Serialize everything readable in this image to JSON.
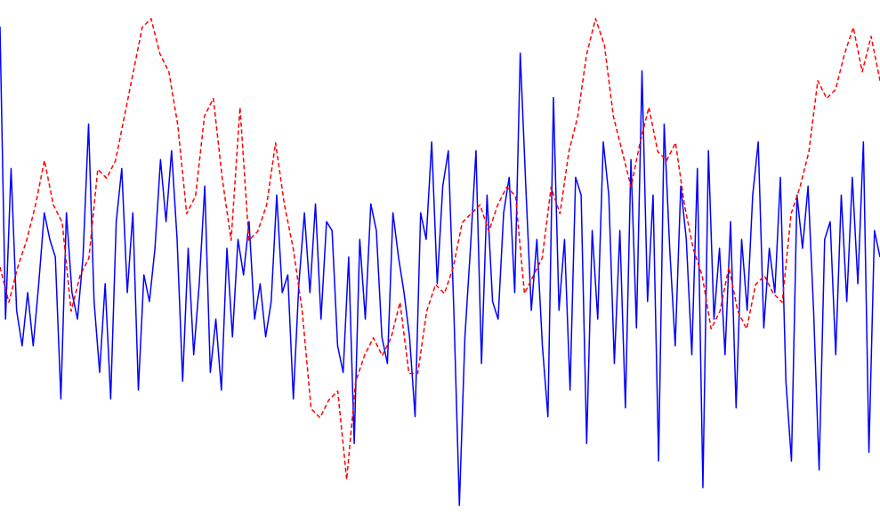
{
  "chart_data": {
    "type": "line",
    "ylim": [
      -3,
      3
    ],
    "series": [
      {
        "color": "#0000ff",
        "linestyle": "solid",
        "values": [
          2.7,
          -0.6,
          1.1,
          -0.5,
          -0.9,
          -0.3,
          -0.9,
          -0.2,
          0.6,
          0.3,
          0.1,
          -1.5,
          0.6,
          -0.3,
          -0.6,
          0.1,
          1.6,
          -0.4,
          -1.2,
          -0.2,
          -1.5,
          0.5,
          1.1,
          -0.3,
          0.6,
          -1.4,
          -0.1,
          -0.4,
          0.2,
          1.2,
          0.5,
          1.3,
          0.3,
          -1.3,
          0.2,
          -1.0,
          -0.2,
          0.9,
          -1.2,
          -0.6,
          -1.4,
          0.2,
          -0.8,
          0.3,
          -0.1,
          0.5,
          -0.6,
          -0.2,
          -0.8,
          -0.4,
          0.8,
          -0.3,
          -0.1,
          -1.5,
          -0.2,
          0.6,
          -0.3,
          0.7,
          -0.6,
          0.5,
          0.4,
          -0.9,
          -1.2,
          0.1,
          -2.0,
          0.3,
          -0.6,
          0.7,
          0.4,
          -0.8,
          -1.1,
          0.6,
          0.1,
          -0.3,
          -0.8,
          -1.7,
          0.6,
          0.3,
          1.4,
          -0.2,
          0.9,
          1.3,
          -0.5,
          -2.7,
          -0.8,
          0.2,
          1.3,
          -1.1,
          0.8,
          -0.4,
          -0.6,
          0.6,
          1.0,
          -0.3,
          2.4,
          0.9,
          -0.5,
          0.3,
          -0.9,
          -1.7,
          1.9,
          -0.5,
          0.3,
          -1.4,
          1.0,
          0.8,
          -2.0,
          0.4,
          -0.6,
          1.4,
          0.8,
          -1.1,
          0.4,
          -1.6,
          1.2,
          -0.7,
          2.2,
          -0.4,
          0.8,
          -2.2,
          1.6,
          0.2,
          -0.9,
          0.9,
          0.3,
          -1.0,
          1.1,
          -2.5,
          1.3,
          -0.6,
          0.2,
          -1.0,
          0.5,
          -1.6,
          0.3,
          -0.5,
          0.8,
          1.4,
          -0.7,
          0.2,
          -0.3,
          1.0,
          -1.3,
          -2.2,
          0.8,
          0.2,
          0.9,
          -0.5,
          -2.3,
          0.3,
          0.5,
          -1.0,
          0.8,
          -0.4,
          1.0,
          -0.2,
          1.4,
          -2.1,
          0.4,
          0.1
        ]
      },
      {
        "color": "#ff0000",
        "linestyle": "dashed",
        "values": [
          -0.01,
          -0.41,
          -0.01,
          0.29,
          0.69,
          1.19,
          0.69,
          0.49,
          -0.51,
          -0.11,
          0.09,
          1.09,
          0.99,
          1.19,
          1.69,
          2.19,
          2.69,
          2.79,
          2.39,
          2.19,
          1.59,
          0.59,
          0.79,
          1.69,
          1.89,
          0.99,
          0.29,
          1.79,
          0.29,
          0.39,
          0.69,
          1.39,
          0.69,
          0.19,
          -0.51,
          -1.61,
          -1.71,
          -1.51,
          -1.41,
          -2.41,
          -1.31,
          -1.01,
          -0.81,
          -1.01,
          -0.81,
          -0.41,
          -1.21,
          -1.21,
          -0.51,
          -0.21,
          -0.31,
          -0.01,
          0.49,
          0.59,
          0.69,
          0.39,
          0.69,
          0.89,
          0.79,
          -0.31,
          -0.11,
          0.09,
          0.89,
          0.59,
          1.29,
          1.69,
          2.39,
          2.79,
          2.49,
          1.69,
          1.29,
          0.89,
          1.39,
          1.79,
          1.29,
          1.19,
          1.39,
          0.69,
          0.19,
          -0.11,
          -0.71,
          -0.51,
          -0.01,
          -0.51,
          -0.71,
          -0.21,
          -0.11,
          -0.31,
          -0.41,
          0.59,
          0.89,
          1.29,
          2.09,
          1.89,
          1.99,
          2.39,
          2.69,
          2.19,
          2.59,
          2.09
        ]
      }
    ]
  }
}
